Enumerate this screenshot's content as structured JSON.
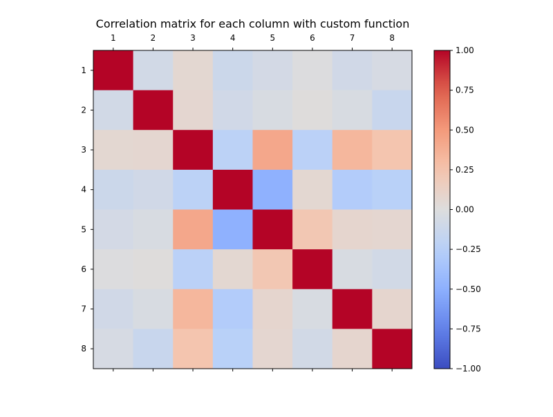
{
  "chart_data": {
    "type": "heatmap",
    "title": "Correlation matrix for each column with custom function",
    "row_labels": [
      "1",
      "2",
      "3",
      "4",
      "5",
      "6",
      "7",
      "8"
    ],
    "col_labels": [
      "1",
      "2",
      "3",
      "4",
      "5",
      "6",
      "7",
      "8"
    ],
    "values": [
      [
        1.0,
        -0.08,
        0.06,
        -0.12,
        -0.07,
        -0.01,
        -0.09,
        -0.05
      ],
      [
        -0.08,
        1.0,
        0.07,
        -0.09,
        -0.04,
        0.01,
        -0.04,
        -0.14
      ],
      [
        0.06,
        0.07,
        1.0,
        -0.22,
        0.42,
        -0.23,
        0.33,
        0.24
      ],
      [
        -0.12,
        -0.09,
        -0.22,
        1.0,
        -0.49,
        0.06,
        -0.28,
        -0.24
      ],
      [
        -0.07,
        -0.04,
        0.42,
        -0.49,
        1.0,
        0.22,
        0.08,
        0.07
      ],
      [
        -0.01,
        0.01,
        -0.23,
        0.06,
        0.22,
        1.0,
        -0.04,
        -0.08
      ],
      [
        -0.09,
        -0.04,
        0.33,
        -0.28,
        0.08,
        -0.04,
        1.0,
        0.08
      ],
      [
        -0.05,
        -0.14,
        0.24,
        -0.24,
        0.07,
        -0.08,
        0.08,
        1.0
      ]
    ],
    "colormap": "coolwarm",
    "vmin": -1.0,
    "vmax": 1.0,
    "colorbar_ticks": [
      1.0,
      0.75,
      0.5,
      0.25,
      0.0,
      -0.25,
      -0.5,
      -0.75,
      -1.0
    ],
    "colorbar_tick_labels": [
      "1.00",
      "0.75",
      "0.50",
      "0.25",
      "0.00",
      "−0.25",
      "−0.50",
      "−0.75",
      "−1.00"
    ],
    "xticks_position": "top",
    "grid": false,
    "legend": "colorbar-right"
  }
}
